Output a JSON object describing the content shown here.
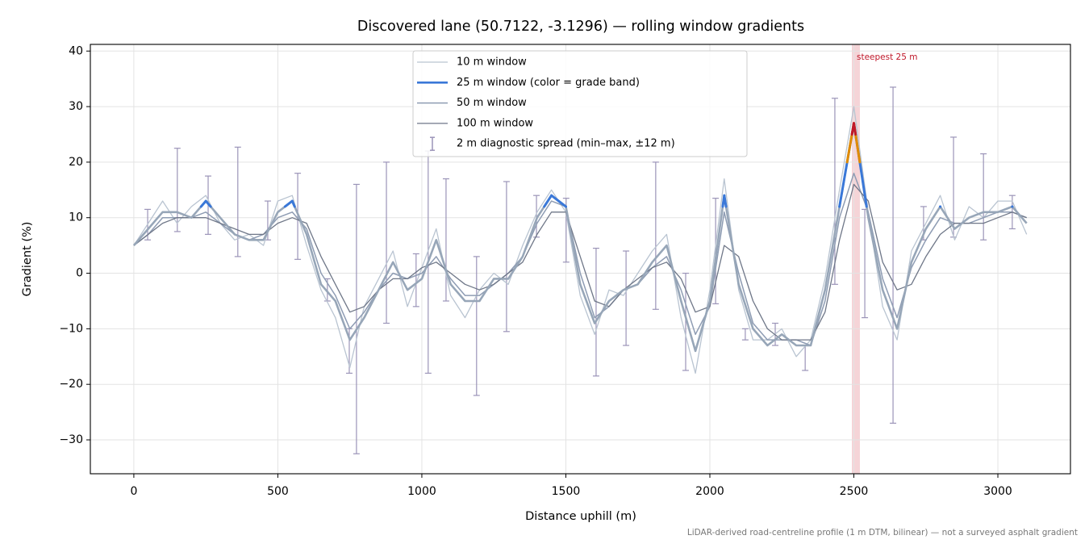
{
  "chart_data": {
    "type": "line",
    "title": "Discovered lane (50.7122, -3.1296) — rolling window gradients",
    "xlabel": "Distance uphill (m)",
    "ylabel": "Gradient (%)",
    "footnote": "LiDAR-derived road-centreline profile (1 m DTM, bilinear) — not a surveyed asphalt gradient",
    "xlim": [
      -151,
      3252
    ],
    "ylim": [
      -36.1,
      41.2
    ],
    "xticks": [
      0,
      500,
      1000,
      1500,
      2000,
      2500,
      3000
    ],
    "yticks": [
      {
        "value": -30,
        "label": "−30"
      },
      {
        "value": -20,
        "label": "−20"
      },
      {
        "value": -10,
        "label": "−10"
      },
      0,
      10,
      20,
      30,
      40
    ],
    "grid": true,
    "legend": "upper center",
    "x": [
      0,
      50,
      100,
      150,
      200,
      250,
      300,
      350,
      400,
      450,
      500,
      550,
      600,
      650,
      700,
      750,
      800,
      850,
      900,
      950,
      1000,
      1050,
      1100,
      1150,
      1200,
      1250,
      1300,
      1350,
      1400,
      1450,
      1500,
      1550,
      1600,
      1650,
      1700,
      1750,
      1800,
      1850,
      1900,
      1950,
      2000,
      2050,
      2100,
      2150,
      2200,
      2250,
      2300,
      2350,
      2400,
      2450,
      2500,
      2550,
      2600,
      2650,
      2700,
      2750,
      2800,
      2850,
      2900,
      2950,
      3000,
      3050,
      3100
    ],
    "series": [
      {
        "name": "10 m window",
        "color": "#b9c4d1",
        "width": 1.3,
        "values": [
          5,
          9,
          13,
          9,
          12,
          14,
          9,
          6,
          7,
          5,
          13,
          14,
          5,
          -3,
          -8,
          -17,
          -6,
          -1,
          4,
          -6,
          1,
          8,
          -4,
          -8,
          -3,
          0,
          -2,
          5,
          11,
          15,
          11,
          -4,
          -11,
          -3,
          -4,
          0,
          4,
          7,
          -8,
          -18,
          -3,
          17,
          -3,
          -12,
          -12,
          -10,
          -15,
          -12,
          -1,
          15,
          30,
          11,
          -6,
          -12,
          4,
          9,
          14,
          6,
          12,
          10,
          13,
          13,
          7
        ]
      },
      {
        "name": "25 m window (color = grade band)",
        "color": "#3a78d8",
        "base_color": "#97a6b8",
        "width": 2.6,
        "grade_bands": [
          {
            "min": 12,
            "color": "#3a78d8"
          },
          {
            "min": 20,
            "color": "#e08a00"
          },
          {
            "min": 25,
            "color": "#c0182a"
          }
        ],
        "values": [
          5,
          8,
          11,
          11,
          10,
          13,
          10,
          7,
          6,
          6,
          11,
          13,
          7,
          -2,
          -5,
          -12,
          -8,
          -3,
          2,
          -3,
          -1,
          6,
          -2,
          -5,
          -5,
          -1,
          -1,
          3,
          10,
          14,
          12,
          -2,
          -9,
          -5,
          -3,
          -2,
          2,
          5,
          -5,
          -14,
          -5,
          14,
          -2,
          -10,
          -13,
          -11,
          -13,
          -13,
          -3,
          12,
          27,
          10,
          -3,
          -10,
          2,
          8,
          12,
          8,
          10,
          11,
          11,
          12,
          9
        ]
      },
      {
        "name": "50 m window",
        "color": "#8e9cb3",
        "width": 1.5,
        "values": [
          5,
          7,
          10,
          10,
          10,
          11,
          9,
          7,
          6,
          7,
          10,
          11,
          8,
          0,
          -4,
          -10,
          -7,
          -3,
          0,
          -1,
          0,
          3,
          -1,
          -4,
          -4,
          -2,
          0,
          3,
          9,
          13,
          12,
          0,
          -8,
          -6,
          -3,
          -2,
          1,
          3,
          -3,
          -11,
          -6,
          11,
          0,
          -9,
          -12,
          -12,
          -12,
          -13,
          -5,
          10,
          18,
          11,
          -1,
          -8,
          1,
          6,
          10,
          9,
          9,
          10,
          11,
          11,
          10
        ]
      },
      {
        "name": "100 m window",
        "color": "#6f7788",
        "width": 1.3,
        "values": [
          5,
          7,
          9,
          10,
          10,
          10,
          9,
          8,
          7,
          7,
          9,
          10,
          9,
          3,
          -2,
          -7,
          -6,
          -3,
          -1,
          -1,
          1,
          2,
          0,
          -2,
          -3,
          -2,
          0,
          2,
          7,
          11,
          11,
          3,
          -5,
          -6,
          -3,
          -1,
          1,
          2,
          -1,
          -7,
          -6,
          5,
          3,
          -5,
          -10,
          -12,
          -12,
          -12,
          -7,
          6,
          16,
          13,
          2,
          -3,
          -2,
          3,
          7,
          9,
          9,
          9,
          10,
          11,
          10
        ]
      }
    ],
    "spread": {
      "name": "2 m diagnostic spread (min–max, ±12 m)",
      "color": "#9b94b8",
      "x": [
        48,
        151,
        258,
        361,
        465,
        569,
        672,
        748,
        773,
        877,
        980,
        1022,
        1084,
        1190,
        1294,
        1398,
        1501,
        1605,
        1709,
        1812,
        1916,
        2020,
        2123,
        2227,
        2331,
        2434,
        2538,
        2636,
        2742,
        2846,
        2950,
        3050
      ],
      "low": [
        6,
        7.5,
        7,
        3,
        6,
        2.5,
        -5,
        -18,
        -32.5,
        -9,
        -6,
        -18,
        -5,
        -22,
        -10.5,
        6.5,
        2,
        -18.5,
        -13,
        -6.5,
        -17.5,
        -5.5,
        -12,
        -13,
        -17.5,
        -2,
        -8,
        -27,
        6,
        6.5,
        6,
        8
      ],
      "high": [
        11.5,
        22.5,
        17.5,
        22.7,
        13,
        18,
        -1,
        -10,
        16,
        20,
        3.5,
        22,
        17,
        3,
        16.5,
        14,
        13.5,
        4.5,
        4,
        20,
        0,
        13.5,
        -10,
        -9,
        -13,
        31.5,
        11.5,
        33.5,
        12,
        24.5,
        21.5,
        14
      ]
    },
    "highlight": {
      "x": [
        2493,
        2521
      ],
      "label": "steepest 25 m",
      "color": "#e8a0a6",
      "text_color": "#c0182a"
    }
  }
}
